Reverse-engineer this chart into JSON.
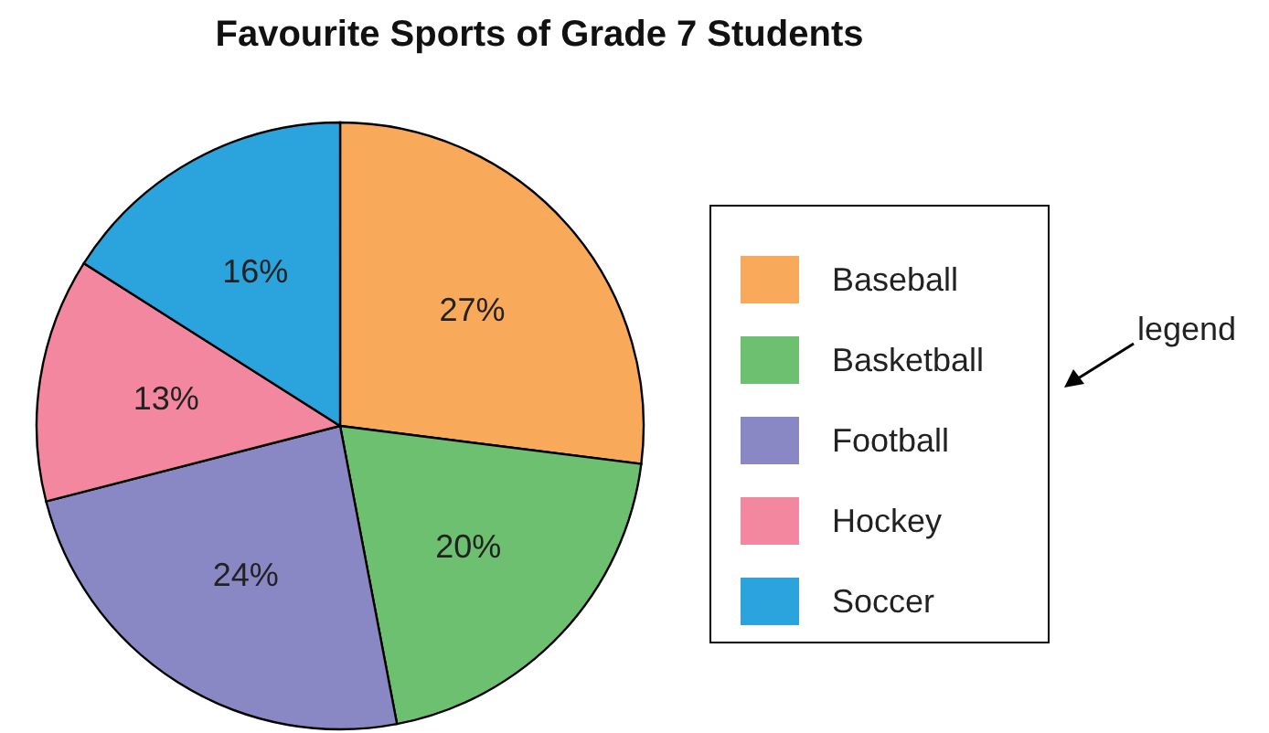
{
  "chart_data": {
    "type": "pie",
    "title": "Favourite Sports of Grade 7 Students",
    "categories": [
      "Baseball",
      "Basketball",
      "Football",
      "Hockey",
      "Soccer"
    ],
    "values": [
      27,
      20,
      24,
      13,
      16
    ],
    "value_labels": [
      "27%",
      "20%",
      "24%",
      "13%",
      "16%"
    ],
    "colors": [
      "#f9a95a",
      "#6cc070",
      "#8a88c4",
      "#f2879f",
      "#2ba3dc"
    ],
    "legend": "right",
    "annotations": [
      "legend"
    ]
  }
}
